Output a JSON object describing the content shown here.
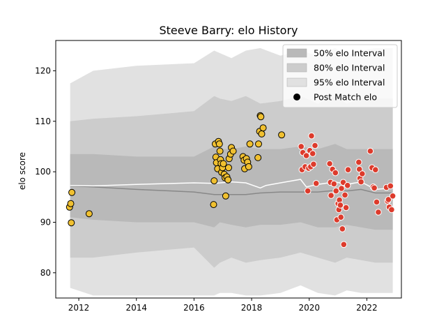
{
  "chart_data": {
    "type": "scatter",
    "title": "Steeve Barry: elo History",
    "xlabel": "",
    "ylabel": "elo score",
    "xlim": [
      2011.2,
      2023.2
    ],
    "ylim": [
      75,
      126
    ],
    "x_ticks": [
      2012,
      2014,
      2016,
      2018,
      2020,
      2022
    ],
    "y_ticks": [
      80,
      90,
      100,
      110,
      120
    ],
    "grid": false,
    "legend_position": "top-right",
    "legend": [
      {
        "label": "50% elo Interval",
        "swatch": "band50"
      },
      {
        "label": "80% elo Interval",
        "swatch": "band80"
      },
      {
        "label": "95% elo Interval",
        "swatch": "band95"
      },
      {
        "label": "Post Match elo",
        "swatch": "marker"
      }
    ],
    "colors": {
      "band95": "#e1e1e1",
      "band80": "#cccccc",
      "band50": "#b9b9b9",
      "mean_line": "#888888",
      "median_line": "#ffffff",
      "yellow_marker": "#f0c030",
      "red_marker": "#dd3b2c"
    },
    "bands": {
      "x": [
        2011.7,
        2012.5,
        2014.0,
        2016.0,
        2016.7,
        2016.9,
        2017.3,
        2017.8,
        2018.3,
        2019.0,
        2019.7,
        2020.3,
        2020.9,
        2021.3,
        2021.8,
        2022.3,
        2022.9
      ],
      "p95_upper": [
        117.5,
        120.0,
        121.0,
        121.5,
        124.0,
        123.5,
        122.5,
        124.0,
        124.5,
        123.0,
        124.0,
        123.0,
        124.5,
        123.0,
        124.0,
        124.5,
        124.5
      ],
      "p95_lower": [
        77.0,
        75.5,
        75.5,
        75.5,
        75.5,
        76.0,
        76.0,
        75.5,
        75.5,
        76.0,
        77.5,
        76.0,
        75.5,
        76.5,
        76.0,
        76.0,
        76.0
      ],
      "p80_upper": [
        110.0,
        110.5,
        111.0,
        112.0,
        115.0,
        114.5,
        114.0,
        115.0,
        113.5,
        114.0,
        115.0,
        113.5,
        115.0,
        113.5,
        114.5,
        114.5,
        114.5
      ],
      "p80_lower": [
        83.0,
        83.0,
        84.0,
        85.0,
        81.0,
        82.0,
        83.0,
        82.0,
        82.5,
        83.0,
        84.0,
        83.0,
        82.0,
        83.0,
        82.5,
        82.0,
        82.0
      ],
      "p50_upper": [
        103.5,
        103.5,
        103.0,
        103.0,
        105.0,
        104.5,
        104.5,
        105.0,
        104.5,
        104.5,
        105.0,
        104.5,
        105.5,
        104.5,
        104.5,
        104.5,
        104.5
      ],
      "p50_lower": [
        91.0,
        90.5,
        90.0,
        90.0,
        89.0,
        90.0,
        89.5,
        89.0,
        89.5,
        89.5,
        90.0,
        89.0,
        89.0,
        89.5,
        89.0,
        88.5,
        88.5
      ]
    },
    "mean_line": {
      "x": [
        2011.7,
        2012.5,
        2014.0,
        2016.0,
        2016.7,
        2017.3,
        2017.8,
        2018.3,
        2019.0,
        2019.7,
        2020.3,
        2020.9,
        2021.3,
        2021.8,
        2022.3,
        2022.9
      ],
      "y": [
        97.2,
        97.0,
        96.5,
        96.0,
        95.5,
        95.5,
        95.5,
        95.8,
        96.0,
        96.0,
        96.0,
        96.3,
        96.2,
        96.5,
        95.8,
        95.8
      ]
    },
    "median_line": {
      "x": [
        2011.7,
        2012.5,
        2014.0,
        2016.0,
        2016.7,
        2017.3,
        2017.8,
        2018.3,
        2018.5,
        2019.0,
        2019.7,
        2019.9,
        2020.3,
        2020.9,
        2021.3,
        2021.8,
        2022.3,
        2022.9
      ],
      "y": [
        97.3,
        97.2,
        97.5,
        97.8,
        97.7,
        98.0,
        97.8,
        96.8,
        97.3,
        97.8,
        98.5,
        97.0,
        97.5,
        98.0,
        97.5,
        98.0,
        96.5,
        96.8
      ]
    },
    "series": [
      {
        "name": "Post Match elo",
        "color": "yellow",
        "points": [
          [
            2011.68,
            93.0
          ],
          [
            2011.72,
            93.7
          ],
          [
            2011.74,
            89.9
          ],
          [
            2011.76,
            95.9
          ],
          [
            2012.36,
            91.7
          ],
          [
            2016.68,
            93.5
          ],
          [
            2016.7,
            98.2
          ],
          [
            2016.74,
            105.5
          ],
          [
            2016.76,
            102.9
          ],
          [
            2016.78,
            101.8
          ],
          [
            2016.82,
            100.6
          ],
          [
            2016.85,
            106.0
          ],
          [
            2016.88,
            105.5
          ],
          [
            2016.9,
            104.1
          ],
          [
            2016.92,
            102.4
          ],
          [
            2016.94,
            101.6
          ],
          [
            2016.96,
            99.9
          ],
          [
            2016.99,
            100.8
          ],
          [
            2017.02,
            101.6
          ],
          [
            2017.05,
            99.5
          ],
          [
            2017.08,
            98.8
          ],
          [
            2017.1,
            95.2
          ],
          [
            2017.14,
            99.0
          ],
          [
            2017.18,
            98.4
          ],
          [
            2017.2,
            100.8
          ],
          [
            2017.22,
            102.6
          ],
          [
            2017.27,
            103.5
          ],
          [
            2017.3,
            104.8
          ],
          [
            2017.36,
            104.1
          ],
          [
            2017.7,
            103.0
          ],
          [
            2017.74,
            102.3
          ],
          [
            2017.76,
            100.6
          ],
          [
            2017.82,
            102.6
          ],
          [
            2017.86,
            101.9
          ],
          [
            2017.9,
            101.0
          ],
          [
            2017.94,
            105.5
          ],
          [
            2018.22,
            102.8
          ],
          [
            2018.24,
            105.5
          ],
          [
            2018.28,
            108.0
          ],
          [
            2018.3,
            111.1
          ],
          [
            2018.32,
            110.9
          ],
          [
            2018.35,
            107.5
          ],
          [
            2018.4,
            108.7
          ],
          [
            2019.04,
            107.3
          ]
        ]
      },
      {
        "name": "Post Match elo",
        "color": "red",
        "points": [
          [
            2019.72,
            105.0
          ],
          [
            2019.75,
            100.4
          ],
          [
            2019.78,
            103.8
          ],
          [
            2019.86,
            101.0
          ],
          [
            2019.9,
            103.2
          ],
          [
            2019.95,
            96.2
          ],
          [
            2019.98,
            100.7
          ],
          [
            2020.02,
            104.2
          ],
          [
            2020.05,
            101.0
          ],
          [
            2020.08,
            107.1
          ],
          [
            2020.12,
            103.6
          ],
          [
            2020.15,
            101.5
          ],
          [
            2020.2,
            105.2
          ],
          [
            2020.24,
            97.7
          ],
          [
            2020.71,
            101.6
          ],
          [
            2020.74,
            97.9
          ],
          [
            2020.76,
            95.3
          ],
          [
            2020.81,
            100.5
          ],
          [
            2020.86,
            97.6
          ],
          [
            2020.91,
            99.8
          ],
          [
            2020.93,
            96.2
          ],
          [
            2020.96,
            90.5
          ],
          [
            2021.0,
            93.7
          ],
          [
            2021.03,
            92.5
          ],
          [
            2021.05,
            94.4
          ],
          [
            2021.08,
            93.4
          ],
          [
            2021.1,
            91.0
          ],
          [
            2021.12,
            96.7
          ],
          [
            2021.15,
            88.7
          ],
          [
            2021.18,
            97.9
          ],
          [
            2021.2,
            85.6
          ],
          [
            2021.24,
            95.4
          ],
          [
            2021.28,
            92.9
          ],
          [
            2021.33,
            97.3
          ],
          [
            2021.35,
            100.4
          ],
          [
            2021.72,
            101.9
          ],
          [
            2021.74,
            100.5
          ],
          [
            2021.76,
            98.7
          ],
          [
            2021.8,
            98.0
          ],
          [
            2021.84,
            99.6
          ],
          [
            2022.12,
            104.1
          ],
          [
            2022.18,
            100.8
          ],
          [
            2022.22,
            97.0
          ],
          [
            2022.26,
            96.8
          ],
          [
            2022.3,
            100.4
          ],
          [
            2022.34,
            94.0
          ],
          [
            2022.4,
            92.0
          ],
          [
            2022.68,
            96.9
          ],
          [
            2022.72,
            94.2
          ],
          [
            2022.75,
            94.5
          ],
          [
            2022.78,
            93.0
          ],
          [
            2022.82,
            97.2
          ],
          [
            2022.86,
            92.5
          ],
          [
            2022.9,
            95.2
          ]
        ]
      }
    ]
  }
}
